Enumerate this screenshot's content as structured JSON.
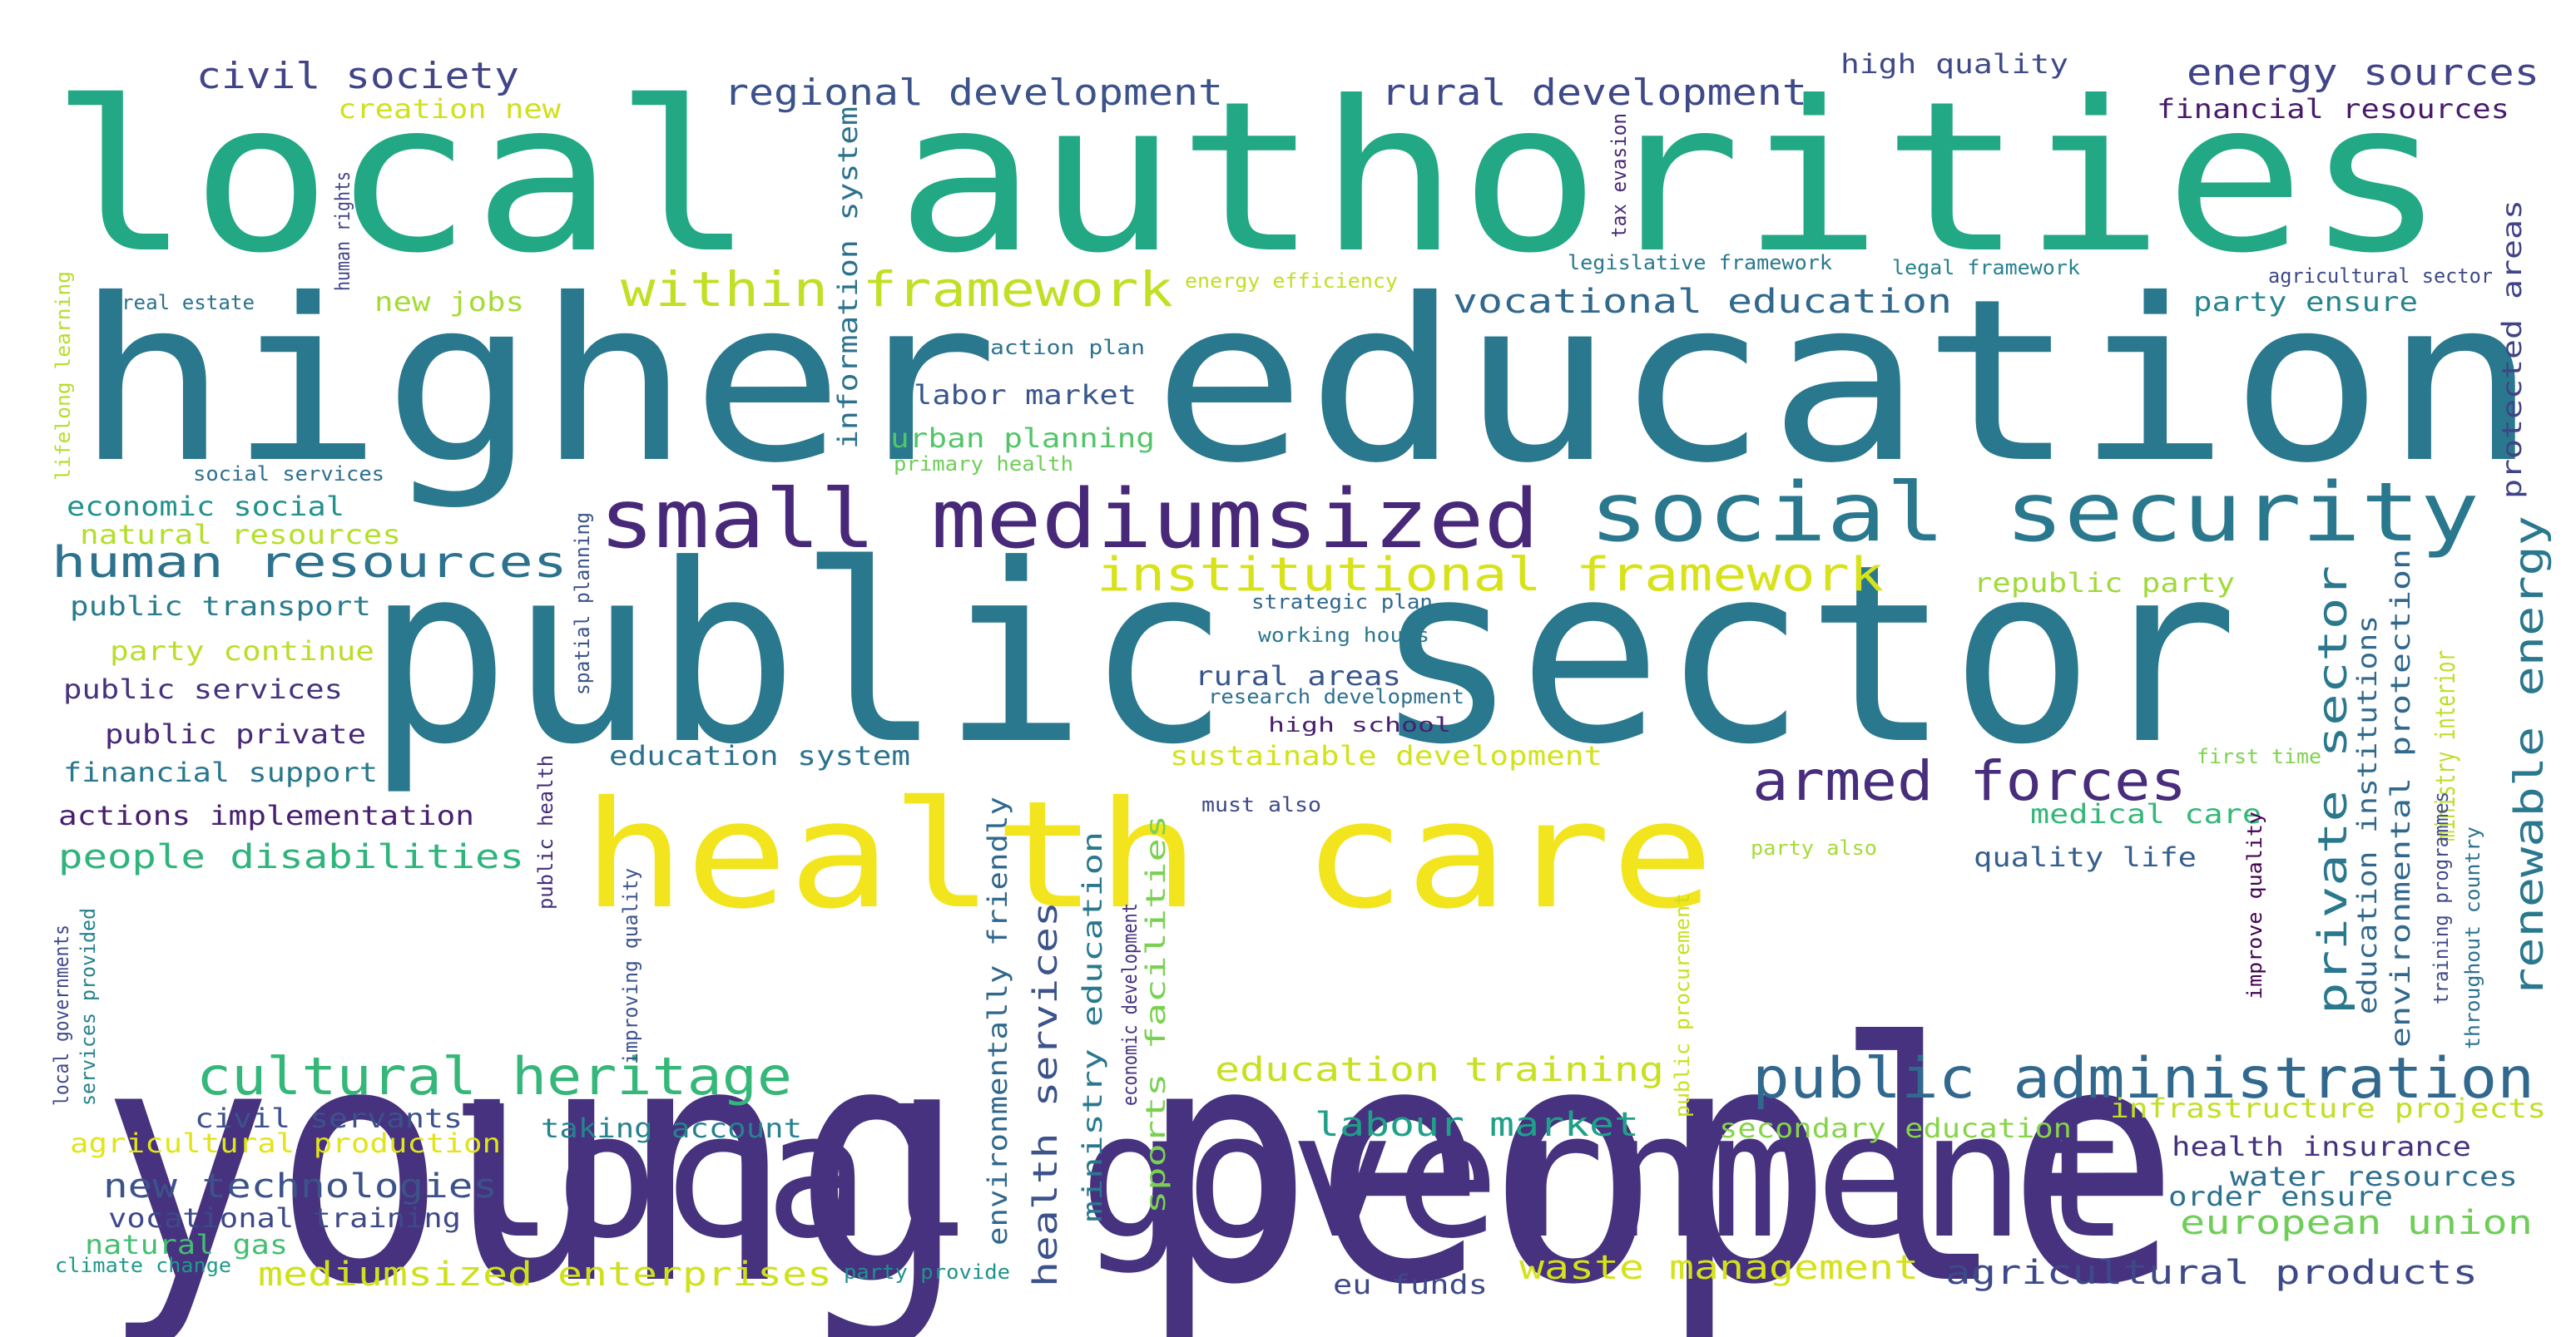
{
  "words": [
    {
      "text": "young people",
      "color": "#46327e"
    },
    {
      "text": "public sector",
      "color": "#2a788e"
    },
    {
      "text": "higher education",
      "color": "#2a788e"
    },
    {
      "text": "local authorities",
      "color": "#22a884"
    },
    {
      "text": "local government",
      "color": "#46327e"
    },
    {
      "text": "health care",
      "color": "#f2e51d"
    },
    {
      "text": "small mediumsized",
      "color": "#482878"
    },
    {
      "text": "social security",
      "color": "#2a788e"
    },
    {
      "text": "public administration",
      "color": "#31688e"
    },
    {
      "text": "cultural heritage",
      "color": "#35b779"
    },
    {
      "text": "armed forces",
      "color": "#472d7b"
    },
    {
      "text": "institutional framework",
      "color": "#d8e219"
    },
    {
      "text": "within framework",
      "color": "#c2df23"
    },
    {
      "text": "human resources",
      "color": "#2c728e"
    },
    {
      "text": "private sector",
      "color": "#2a788e"
    },
    {
      "text": "renewable energy",
      "color": "#2a788e"
    },
    {
      "text": "regional development",
      "color": "#3b528b"
    },
    {
      "text": "rural development",
      "color": "#3e4989"
    },
    {
      "text": "energy sources",
      "color": "#414487"
    },
    {
      "text": "civil society",
      "color": "#414487"
    },
    {
      "text": "vocational education",
      "color": "#31688e"
    },
    {
      "text": "new technologies",
      "color": "#3b528b"
    },
    {
      "text": "mediumsized enterprises",
      "color": "#d0e11c"
    },
    {
      "text": "people disabilities",
      "color": "#2fb47c"
    },
    {
      "text": "education training",
      "color": "#c8e020"
    },
    {
      "text": "waste management",
      "color": "#d5e21a"
    },
    {
      "text": "agricultural products",
      "color": "#3e4989"
    },
    {
      "text": "european union",
      "color": "#6ece58"
    },
    {
      "text": "labour market",
      "color": "#1fa088"
    },
    {
      "text": "health services",
      "color": "#3b528b"
    },
    {
      "text": "environmentally friendly",
      "color": "#31688e"
    },
    {
      "text": "ministry education",
      "color": "#2a788e"
    },
    {
      "text": "sports facilities",
      "color": "#7ad151"
    },
    {
      "text": "education institutions",
      "color": "#31688e"
    },
    {
      "text": "environmental protection",
      "color": "#31688e"
    },
    {
      "text": "ministry interior",
      "color": "#bddf26"
    },
    {
      "text": "information system",
      "color": "#2c728e"
    },
    {
      "text": "protected areas",
      "color": "#414487"
    },
    {
      "text": "sustainable development",
      "color": "#d2e21b"
    },
    {
      "text": "education system",
      "color": "#2c728e"
    },
    {
      "text": "financial support",
      "color": "#2a788e"
    },
    {
      "text": "public services",
      "color": "#46327e"
    },
    {
      "text": "public private",
      "color": "#482878"
    },
    {
      "text": "actions implementation",
      "color": "#481f70"
    },
    {
      "text": "public transport",
      "color": "#287c8e"
    },
    {
      "text": "party continue",
      "color": "#bade28"
    },
    {
      "text": "economic social",
      "color": "#21918c"
    },
    {
      "text": "natural resources",
      "color": "#b5de2b"
    },
    {
      "text": "civil servants",
      "color": "#3b528b"
    },
    {
      "text": "agricultural production",
      "color": "#e2e418"
    },
    {
      "text": "vocational training",
      "color": "#3e4989"
    },
    {
      "text": "natural gas",
      "color": "#44bf70"
    },
    {
      "text": "taking account",
      "color": "#26828e"
    },
    {
      "text": "infrastructure projects",
      "color": "#c0df25"
    },
    {
      "text": "secondary education",
      "color": "#86d549"
    },
    {
      "text": "health insurance",
      "color": "#46327e"
    },
    {
      "text": "water resources",
      "color": "#2e6f8e"
    },
    {
      "text": "order ensure",
      "color": "#2c728e"
    },
    {
      "text": "quality life",
      "color": "#355f8d"
    },
    {
      "text": "medical care",
      "color": "#35b779"
    },
    {
      "text": "party ensure",
      "color": "#25848e"
    },
    {
      "text": "republic party",
      "color": "#a0da39"
    },
    {
      "text": "financial resources",
      "color": "#481a6c"
    },
    {
      "text": "high quality",
      "color": "#3e4989"
    },
    {
      "text": "creation new",
      "color": "#d0e11c"
    },
    {
      "text": "new jobs",
      "color": "#a5db36"
    },
    {
      "text": "labor market",
      "color": "#39568c"
    },
    {
      "text": "urban planning",
      "color": "#52c569"
    },
    {
      "text": "rural areas",
      "color": "#39568c"
    },
    {
      "text": "eu funds",
      "color": "#3e4989"
    },
    {
      "text": "research development",
      "color": "#2e6f8e"
    },
    {
      "text": "high school",
      "color": "#481f70"
    },
    {
      "text": "working hours",
      "color": "#2a788e"
    },
    {
      "text": "strategic plan",
      "color": "#31688e"
    },
    {
      "text": "action plan",
      "color": "#2c728e"
    },
    {
      "text": "primary health",
      "color": "#6ece58"
    },
    {
      "text": "energy efficiency",
      "color": "#c0df25"
    },
    {
      "text": "legislative framework",
      "color": "#2a788e"
    },
    {
      "text": "legal framework",
      "color": "#26828e"
    },
    {
      "text": "agricultural sector",
      "color": "#3e4989"
    },
    {
      "text": "tax evasion",
      "color": "#482878"
    },
    {
      "text": "human rights",
      "color": "#414487"
    },
    {
      "text": "real estate",
      "color": "#2c728e"
    },
    {
      "text": "lifelong learning",
      "color": "#b5de2b"
    },
    {
      "text": "social services",
      "color": "#2e6f8e"
    },
    {
      "text": "spatial planning",
      "color": "#3b528b"
    },
    {
      "text": "public health",
      "color": "#472c7a"
    },
    {
      "text": "improving quality",
      "color": "#3b528b"
    },
    {
      "text": "economic development",
      "color": "#46327e"
    },
    {
      "text": "public procurement",
      "color": "#c8e020"
    },
    {
      "text": "must also",
      "color": "#3e4989"
    },
    {
      "text": "party also",
      "color": "#a5db36"
    },
    {
      "text": "first time",
      "color": "#7fd34e"
    },
    {
      "text": "improve quality",
      "color": "#440154"
    },
    {
      "text": "training programmes",
      "color": "#3e4989"
    },
    {
      "text": "throughout country",
      "color": "#2c728e"
    },
    {
      "text": "local governments",
      "color": "#3e4989"
    },
    {
      "text": "services provided",
      "color": "#26828e"
    },
    {
      "text": "climate change",
      "color": "#1f9a8a"
    },
    {
      "text": "party provide",
      "color": "#21918c"
    }
  ]
}
